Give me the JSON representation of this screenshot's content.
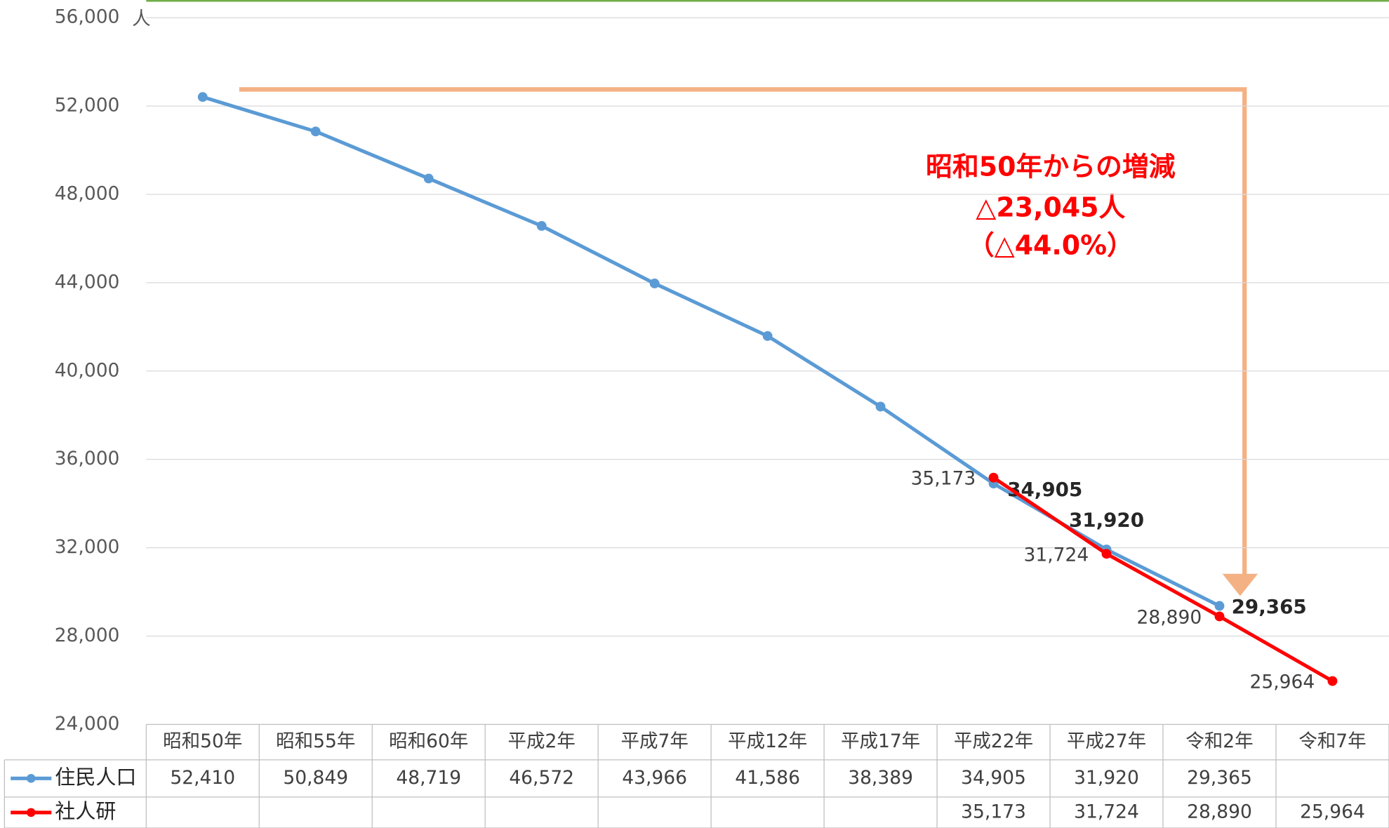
{
  "chart_data": {
    "type": "line",
    "categories": [
      "昭和50年",
      "昭和55年",
      "昭和60年",
      "平成2年",
      "平成7年",
      "平成12年",
      "平成17年",
      "平成22年",
      "平成27年",
      "令和2年",
      "令和7年"
    ],
    "series": [
      {
        "name": "住民人口",
        "color": "#5b9bd5",
        "values": [
          52410,
          50849,
          48719,
          46572,
          43966,
          41586,
          38389,
          34905,
          31920,
          29365,
          null
        ],
        "value_labels": [
          "52,410",
          "50,849",
          "48,719",
          "46,572",
          "43,966",
          "41,586",
          "38,389",
          "34,905",
          "31,920",
          "29,365",
          null
        ]
      },
      {
        "name": "社人研",
        "color": "#ff0000",
        "values": [
          null,
          null,
          null,
          null,
          null,
          null,
          null,
          35173,
          31724,
          28890,
          25964
        ],
        "value_labels": [
          null,
          null,
          null,
          null,
          null,
          null,
          null,
          "35,173",
          "31,724",
          "28,890",
          "25,964"
        ]
      }
    ],
    "ylim": [
      24000,
      56000
    ],
    "yticks": [
      {
        "value": 24000,
        "label": "24,000"
      },
      {
        "value": 28000,
        "label": "28,000"
      },
      {
        "value": 32000,
        "label": "32,000"
      },
      {
        "value": 36000,
        "label": "36,000"
      },
      {
        "value": 40000,
        "label": "40,000"
      },
      {
        "value": 44000,
        "label": "44,000"
      },
      {
        "value": 48000,
        "label": "48,000"
      },
      {
        "value": 52000,
        "label": "52,000"
      },
      {
        "value": 56000,
        "label": "56,000"
      }
    ],
    "y_unit": "人",
    "grid": true,
    "annotation": [
      "昭和50年からの増減",
      "△23,045人",
      "（△44.0%）"
    ]
  }
}
